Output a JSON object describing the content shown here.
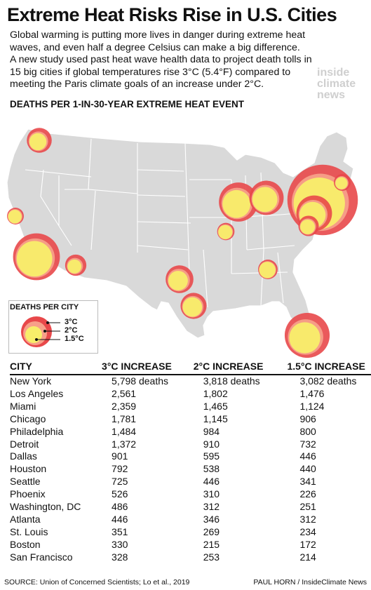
{
  "header": {
    "title": "Extreme Heat Risks Rise in U.S. Cities",
    "intro_lines": [
      "Global warming is putting more lives in danger during extreme heat",
      "waves, and even half a degree Celsius can make a big difference.",
      "A new study used past heat wave health data to project death tolls in",
      "15 big cities if global temperatures rise 3°C (5.4°F) compared to",
      "meeting the Paris climate goals of an increase under 2°C."
    ],
    "logo_lines": [
      "inside",
      "climate",
      "news"
    ],
    "subtitle": "DEATHS PER 1-IN-30-YEAR EXTREME HEAT EVENT"
  },
  "legend": {
    "title": "DEATHS PER CITY",
    "labels": [
      "3°C",
      "2°C",
      "1.5°C"
    ]
  },
  "colors": {
    "map_land": "#d9d9d9",
    "map_border": "#ffffff",
    "ring_3c": "#e8484a",
    "ring_2c": "#f7a089",
    "ring_15c": "#f8ee6a"
  },
  "chart_data": {
    "type": "table",
    "columns": [
      "CITY",
      "3°C INCREASE",
      "2°C INCREASE",
      "1.5°C INCREASE"
    ],
    "rows": [
      {
        "city": "New York",
        "c3": "5,798 deaths",
        "c2": "3,818 deaths",
        "c15": "3,082 deaths",
        "v3": 5798,
        "v2": 3818,
        "v15": 3082
      },
      {
        "city": "Los Angeles",
        "c3": "2,561",
        "c2": "1,802",
        "c15": "1,476",
        "v3": 2561,
        "v2": 1802,
        "v15": 1476
      },
      {
        "city": "Miami",
        "c3": "2,359",
        "c2": "1,465",
        "c15": "1,124",
        "v3": 2359,
        "v2": 1465,
        "v15": 1124
      },
      {
        "city": "Chicago",
        "c3": "1,781",
        "c2": "1,145",
        "c15": "906",
        "v3": 1781,
        "v2": 1145,
        "v15": 906
      },
      {
        "city": "Philadelphia",
        "c3": "1,484",
        "c2": "984",
        "c15": "800",
        "v3": 1484,
        "v2": 984,
        "v15": 800
      },
      {
        "city": "Detroit",
        "c3": "1,372",
        "c2": "910",
        "c15": "732",
        "v3": 1372,
        "v2": 910,
        "v15": 732
      },
      {
        "city": "Dallas",
        "c3": "901",
        "c2": "595",
        "c15": "446",
        "v3": 901,
        "v2": 595,
        "v15": 446
      },
      {
        "city": "Houston",
        "c3": "792",
        "c2": "538",
        "c15": "440",
        "v3": 792,
        "v2": 538,
        "v15": 440
      },
      {
        "city": "Seattle",
        "c3": "725",
        "c2": "446",
        "c15": "341",
        "v3": 725,
        "v2": 446,
        "v15": 341
      },
      {
        "city": "Phoenix",
        "c3": "526",
        "c2": "310",
        "c15": "226",
        "v3": 526,
        "v2": 310,
        "v15": 226
      },
      {
        "city": "Washington, DC",
        "c3": "486",
        "c2": "312",
        "c15": "251",
        "v3": 486,
        "v2": 312,
        "v15": 251
      },
      {
        "city": "Atlanta",
        "c3": "446",
        "c2": "346",
        "c15": "312",
        "v3": 446,
        "v2": 346,
        "v15": 312
      },
      {
        "city": "St. Louis",
        "c3": "351",
        "c2": "269",
        "c15": "234",
        "v3": 351,
        "v2": 269,
        "v15": 234
      },
      {
        "city": "Boston",
        "c3": "330",
        "c2": "215",
        "c15": "172",
        "v3": 330,
        "v2": 215,
        "v15": 172
      },
      {
        "city": "San Francisco",
        "c3": "328",
        "c2": "253",
        "c15": "214",
        "v3": 328,
        "v2": 253,
        "v15": 214
      }
    ]
  },
  "footer": {
    "source": "SOURCE: Union of Concerned Scientists; Lo et al., 2019",
    "credit": "PAUL HORN / InsideClimate News"
  }
}
